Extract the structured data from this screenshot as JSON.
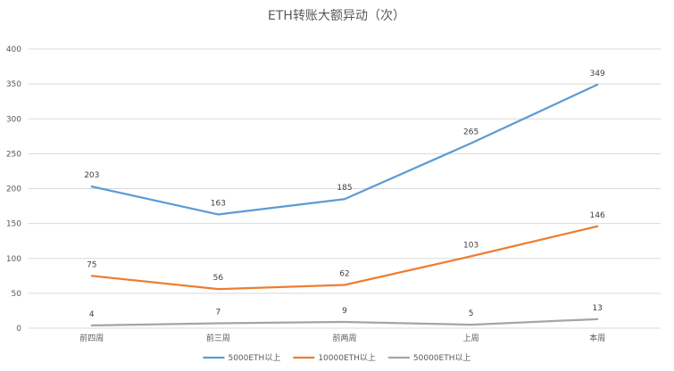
{
  "chart_data": {
    "type": "line",
    "title": "ETH转账大额异动（次）",
    "categories": [
      "前四周",
      "前三周",
      "前两周",
      "上周",
      "本周"
    ],
    "ylim": [
      0,
      400
    ],
    "yticks": [
      0,
      50,
      100,
      150,
      200,
      250,
      300,
      350,
      400
    ],
    "grid": true,
    "legend_position": "bottom",
    "series": [
      {
        "name": "5000ETH以上",
        "color": "#5b9bd5",
        "values": [
          203,
          163,
          185,
          265,
          349
        ]
      },
      {
        "name": "10000ETH以上",
        "color": "#ed7d31",
        "values": [
          75,
          56,
          62,
          103,
          146
        ]
      },
      {
        "name": "50000ETH以上",
        "color": "#a5a5a5",
        "values": [
          4,
          7,
          9,
          5,
          13
        ]
      }
    ]
  }
}
